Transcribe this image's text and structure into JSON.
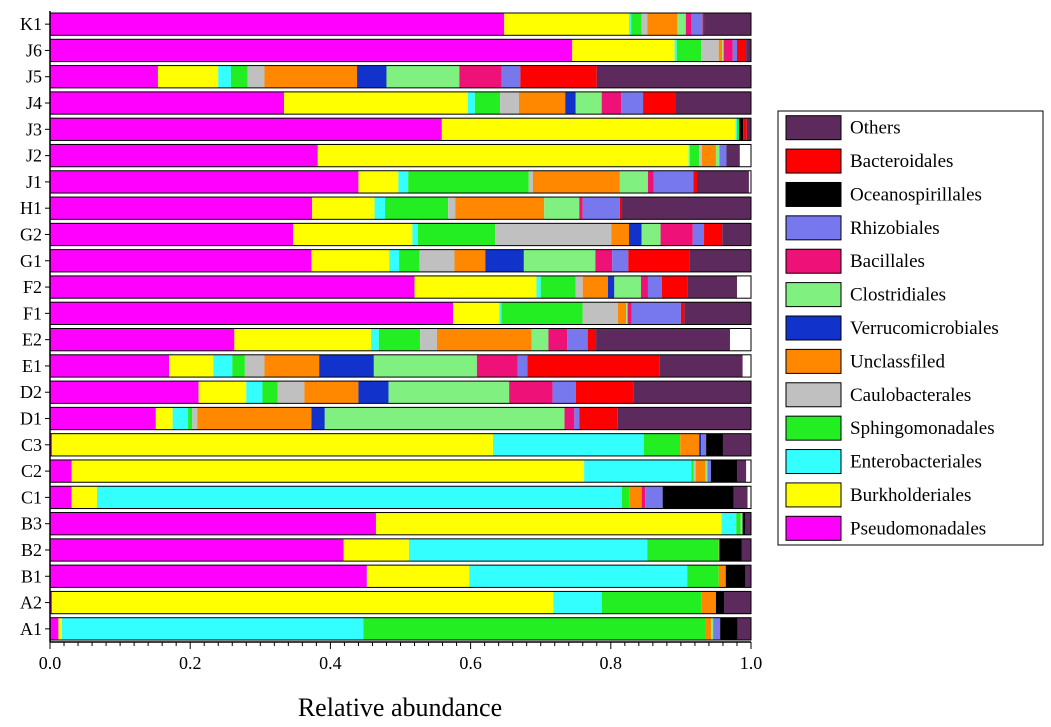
{
  "chart_data": {
    "type": "bar",
    "orientation": "horizontal",
    "stacked": true,
    "xlabel": "Relative abundance",
    "ylabel": "",
    "xlim": [
      0,
      1
    ],
    "x_ticks": [
      "0.0",
      "0.2",
      "0.4",
      "0.6",
      "0.8",
      "1.0"
    ],
    "grid": false,
    "legend_position": "right",
    "categories": [
      "K1",
      "J6",
      "J5",
      "J4",
      "J3",
      "J2",
      "J1",
      "H1",
      "G2",
      "G1",
      "F2",
      "F1",
      "E2",
      "E1",
      "D2",
      "D1",
      "C3",
      "C2",
      "C1",
      "B3",
      "B2",
      "B1",
      "A2",
      "A1"
    ],
    "series": [
      {
        "name": "Pseudomonadales",
        "color": "#ff00ff",
        "values": [
          0.648,
          0.745,
          0.154,
          0.334,
          0.559,
          0.382,
          0.44,
          0.374,
          0.347,
          0.373,
          0.52,
          0.575,
          0.263,
          0.17,
          0.212,
          0.151,
          0.003,
          0.031,
          0.031,
          0.465,
          0.419,
          0.452,
          0.003,
          0.012
        ]
      },
      {
        "name": "Burkholderiales",
        "color": "#ffff00",
        "values": [
          0.178,
          0.146,
          0.086,
          0.262,
          0.419,
          0.529,
          0.057,
          0.089,
          0.17,
          0.111,
          0.174,
          0.066,
          0.195,
          0.063,
          0.068,
          0.024,
          0.629,
          0.731,
          0.036,
          0.493,
          0.093,
          0.146,
          0.715,
          0.005
        ]
      },
      {
        "name": "Enterobacteriales",
        "color": "#33ffff",
        "values": [
          0.003,
          0.003,
          0.018,
          0.01,
          0.002,
          0.002,
          0.014,
          0.015,
          0.008,
          0.014,
          0.006,
          0.003,
          0.011,
          0.027,
          0.023,
          0.022,
          0.215,
          0.153,
          0.749,
          0.021,
          0.34,
          0.311,
          0.069,
          0.43
        ]
      },
      {
        "name": "Sphingomonadales",
        "color": "#22ee22",
        "values": [
          0.015,
          0.035,
          0.024,
          0.036,
          0.003,
          0.013,
          0.172,
          0.09,
          0.11,
          0.029,
          0.05,
          0.116,
          0.059,
          0.018,
          0.022,
          0.006,
          0.052,
          0.003,
          0.011,
          0.006,
          0.102,
          0.045,
          0.142,
          0.488
        ]
      },
      {
        "name": "Caulobacterales",
        "color": "#c0c0c0",
        "values": [
          0.008,
          0.025,
          0.024,
          0.027,
          0,
          0.004,
          0.006,
          0.01,
          0.166,
          0.05,
          0.01,
          0.05,
          0.024,
          0.028,
          0.038,
          0.007,
          0,
          0.003,
          0,
          0,
          0,
          0,
          0,
          0
        ]
      },
      {
        "name": "Unclassfiled",
        "color": "#ff8800",
        "values": [
          0.043,
          0.005,
          0.132,
          0.066,
          0,
          0.02,
          0.124,
          0.127,
          0.025,
          0.044,
          0.036,
          0.012,
          0.135,
          0.078,
          0.077,
          0.163,
          0.027,
          0.014,
          0.017,
          0,
          0.001,
          0.01,
          0.021,
          0.008
        ]
      },
      {
        "name": "Verrucomicrobiales",
        "color": "#1133cc",
        "values": [
          0,
          0,
          0.042,
          0.015,
          0,
          0,
          0,
          0,
          0.018,
          0.055,
          0.009,
          0,
          0,
          0.078,
          0.043,
          0.019,
          0.003,
          0,
          0,
          0,
          0,
          0,
          0,
          0
        ]
      },
      {
        "name": "Clostridiales",
        "color": "#80f080",
        "values": [
          0.012,
          0.002,
          0.104,
          0.037,
          0,
          0.005,
          0.04,
          0.05,
          0.027,
          0.102,
          0.038,
          0.002,
          0.024,
          0.147,
          0.172,
          0.342,
          0,
          0.003,
          0,
          0.003,
          0,
          0,
          0,
          0.003
        ]
      },
      {
        "name": "Bacillales",
        "color": "#ee1177",
        "values": [
          0.008,
          0.013,
          0.06,
          0.028,
          0,
          0,
          0.008,
          0.005,
          0.046,
          0.024,
          0.01,
          0.006,
          0.027,
          0.058,
          0.062,
          0.014,
          0,
          0,
          0.005,
          0,
          0,
          0,
          0,
          0
        ]
      },
      {
        "name": "Rhizobiales",
        "color": "#7777ee",
        "values": [
          0.016,
          0.006,
          0.027,
          0.031,
          0,
          0.01,
          0.057,
          0.053,
          0.016,
          0.023,
          0.02,
          0.07,
          0.029,
          0.014,
          0.033,
          0.007,
          0.007,
          0.005,
          0.025,
          0,
          0,
          0,
          0,
          0.01
        ]
      },
      {
        "name": "Oceanospirillales",
        "color": "#000000",
        "values": [
          0,
          0,
          0,
          0,
          0.006,
          0,
          0,
          0,
          0,
          0,
          0,
          0,
          0,
          0,
          0,
          0,
          0.024,
          0.037,
          0.101,
          0.004,
          0.032,
          0.028,
          0.012,
          0.025
        ]
      },
      {
        "name": "Bacteroidales",
        "color": "#ff0000",
        "values": [
          0.002,
          0.013,
          0.109,
          0.047,
          0.005,
          0,
          0.005,
          0.003,
          0.026,
          0.087,
          0.037,
          0.005,
          0.012,
          0.189,
          0.082,
          0.055,
          0,
          0,
          0,
          0,
          0,
          0,
          0,
          0
        ]
      },
      {
        "name": "Others",
        "color": "#5c2a5c",
        "values": [
          0.067,
          0.007,
          0.224,
          0.108,
          0.006,
          0.019,
          0.074,
          0.184,
          0.041,
          0.088,
          0.07,
          0.095,
          0.191,
          0.118,
          0.168,
          0.19,
          0.04,
          0.013,
          0.02,
          0.008,
          0.013,
          0.008,
          0.038,
          0.019
        ]
      }
    ]
  }
}
